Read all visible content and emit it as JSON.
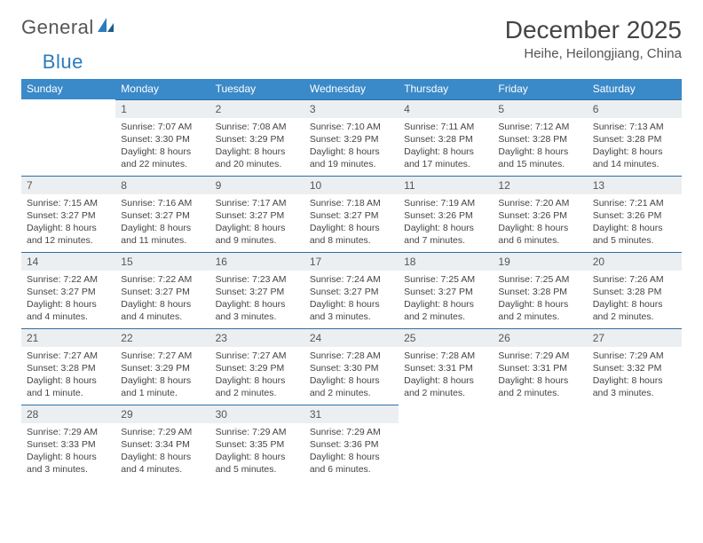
{
  "brand": {
    "part1": "General",
    "part2": "Blue"
  },
  "title": "December 2025",
  "location": "Heihe, Heilongjiang, China",
  "colors": {
    "header_bg": "#3a89c9",
    "daynum_bg": "#eceff1",
    "daynum_border": "#2f6fa3"
  },
  "weekdays": [
    "Sunday",
    "Monday",
    "Tuesday",
    "Wednesday",
    "Thursday",
    "Friday",
    "Saturday"
  ],
  "weeks": [
    [
      null,
      {
        "n": "1",
        "sr": "7:07 AM",
        "ss": "3:30 PM",
        "dl": "8 hours and 22 minutes."
      },
      {
        "n": "2",
        "sr": "7:08 AM",
        "ss": "3:29 PM",
        "dl": "8 hours and 20 minutes."
      },
      {
        "n": "3",
        "sr": "7:10 AM",
        "ss": "3:29 PM",
        "dl": "8 hours and 19 minutes."
      },
      {
        "n": "4",
        "sr": "7:11 AM",
        "ss": "3:28 PM",
        "dl": "8 hours and 17 minutes."
      },
      {
        "n": "5",
        "sr": "7:12 AM",
        "ss": "3:28 PM",
        "dl": "8 hours and 15 minutes."
      },
      {
        "n": "6",
        "sr": "7:13 AM",
        "ss": "3:28 PM",
        "dl": "8 hours and 14 minutes."
      }
    ],
    [
      {
        "n": "7",
        "sr": "7:15 AM",
        "ss": "3:27 PM",
        "dl": "8 hours and 12 minutes."
      },
      {
        "n": "8",
        "sr": "7:16 AM",
        "ss": "3:27 PM",
        "dl": "8 hours and 11 minutes."
      },
      {
        "n": "9",
        "sr": "7:17 AM",
        "ss": "3:27 PM",
        "dl": "8 hours and 9 minutes."
      },
      {
        "n": "10",
        "sr": "7:18 AM",
        "ss": "3:27 PM",
        "dl": "8 hours and 8 minutes."
      },
      {
        "n": "11",
        "sr": "7:19 AM",
        "ss": "3:26 PM",
        "dl": "8 hours and 7 minutes."
      },
      {
        "n": "12",
        "sr": "7:20 AM",
        "ss": "3:26 PM",
        "dl": "8 hours and 6 minutes."
      },
      {
        "n": "13",
        "sr": "7:21 AM",
        "ss": "3:26 PM",
        "dl": "8 hours and 5 minutes."
      }
    ],
    [
      {
        "n": "14",
        "sr": "7:22 AM",
        "ss": "3:27 PM",
        "dl": "8 hours and 4 minutes."
      },
      {
        "n": "15",
        "sr": "7:22 AM",
        "ss": "3:27 PM",
        "dl": "8 hours and 4 minutes."
      },
      {
        "n": "16",
        "sr": "7:23 AM",
        "ss": "3:27 PM",
        "dl": "8 hours and 3 minutes."
      },
      {
        "n": "17",
        "sr": "7:24 AM",
        "ss": "3:27 PM",
        "dl": "8 hours and 3 minutes."
      },
      {
        "n": "18",
        "sr": "7:25 AM",
        "ss": "3:27 PM",
        "dl": "8 hours and 2 minutes."
      },
      {
        "n": "19",
        "sr": "7:25 AM",
        "ss": "3:28 PM",
        "dl": "8 hours and 2 minutes."
      },
      {
        "n": "20",
        "sr": "7:26 AM",
        "ss": "3:28 PM",
        "dl": "8 hours and 2 minutes."
      }
    ],
    [
      {
        "n": "21",
        "sr": "7:27 AM",
        "ss": "3:28 PM",
        "dl": "8 hours and 1 minute."
      },
      {
        "n": "22",
        "sr": "7:27 AM",
        "ss": "3:29 PM",
        "dl": "8 hours and 1 minute."
      },
      {
        "n": "23",
        "sr": "7:27 AM",
        "ss": "3:29 PM",
        "dl": "8 hours and 2 minutes."
      },
      {
        "n": "24",
        "sr": "7:28 AM",
        "ss": "3:30 PM",
        "dl": "8 hours and 2 minutes."
      },
      {
        "n": "25",
        "sr": "7:28 AM",
        "ss": "3:31 PM",
        "dl": "8 hours and 2 minutes."
      },
      {
        "n": "26",
        "sr": "7:29 AM",
        "ss": "3:31 PM",
        "dl": "8 hours and 2 minutes."
      },
      {
        "n": "27",
        "sr": "7:29 AM",
        "ss": "3:32 PM",
        "dl": "8 hours and 3 minutes."
      }
    ],
    [
      {
        "n": "28",
        "sr": "7:29 AM",
        "ss": "3:33 PM",
        "dl": "8 hours and 3 minutes."
      },
      {
        "n": "29",
        "sr": "7:29 AM",
        "ss": "3:34 PM",
        "dl": "8 hours and 4 minutes."
      },
      {
        "n": "30",
        "sr": "7:29 AM",
        "ss": "3:35 PM",
        "dl": "8 hours and 5 minutes."
      },
      {
        "n": "31",
        "sr": "7:29 AM",
        "ss": "3:36 PM",
        "dl": "8 hours and 6 minutes."
      },
      null,
      null,
      null
    ]
  ],
  "labels": {
    "sunrise": "Sunrise:",
    "sunset": "Sunset:",
    "daylight": "Daylight:"
  }
}
